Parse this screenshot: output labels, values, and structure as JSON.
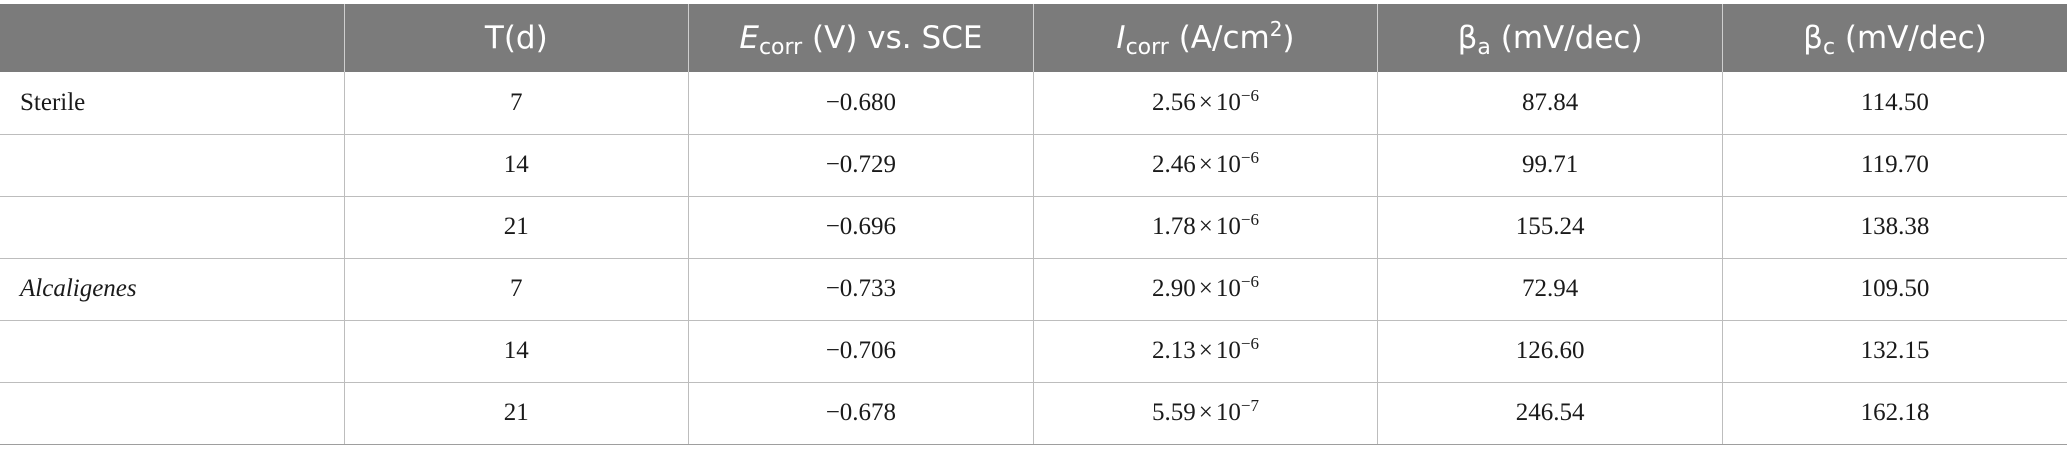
{
  "headers": {
    "group": "",
    "t": "T(d)",
    "ecorr_sym": "E",
    "ecorr_sub": "corr",
    "ecorr_rest": " (V) vs. SCE",
    "icorr_sym": "I",
    "icorr_sub": "corr",
    "icorr_unit": " (A/cm",
    "icorr_sup": "2",
    "icorr_close": ")",
    "ba_sym": "β",
    "ba_sub": "a",
    "ba_rest": " (mV/dec)",
    "bc_sym": "β",
    "bc_sub": "c",
    "bc_rest": " (mV/dec)"
  },
  "rows": [
    {
      "group": "Sterile",
      "t": "7",
      "ecorr": "−0.680",
      "icorr_mant": "2.56",
      "times": "×",
      "icorr_base": "10",
      "icorr_exp": "−6",
      "ba": "87.84",
      "bc": "114.50"
    },
    {
      "group": "",
      "t": "14",
      "ecorr": "−0.729",
      "icorr_mant": "2.46",
      "times": "×",
      "icorr_base": "10",
      "icorr_exp": "−6",
      "ba": "99.71",
      "bc": "119.70"
    },
    {
      "group": "",
      "t": "21",
      "ecorr": "−0.696",
      "icorr_mant": "1.78",
      "times": "×",
      "icorr_base": "10",
      "icorr_exp": "−6",
      "ba": "155.24",
      "bc": "138.38"
    },
    {
      "group": "Alcaligenes",
      "t": "7",
      "ecorr": "−0.733",
      "icorr_mant": "2.90",
      "times": "×",
      "icorr_base": "10",
      "icorr_exp": "−6",
      "ba": "72.94",
      "bc": "109.50"
    },
    {
      "group": "",
      "t": "14",
      "ecorr": "−0.706",
      "icorr_mant": "2.13",
      "times": "×",
      "icorr_base": "10",
      "icorr_exp": "−6",
      "ba": "126.60",
      "bc": "132.15"
    },
    {
      "group": "",
      "t": "21",
      "ecorr": "−0.678",
      "icorr_mant": "5.59",
      "times": "×",
      "icorr_base": "10",
      "icorr_exp": "−7",
      "ba": "246.54",
      "bc": "162.18"
    }
  ]
}
